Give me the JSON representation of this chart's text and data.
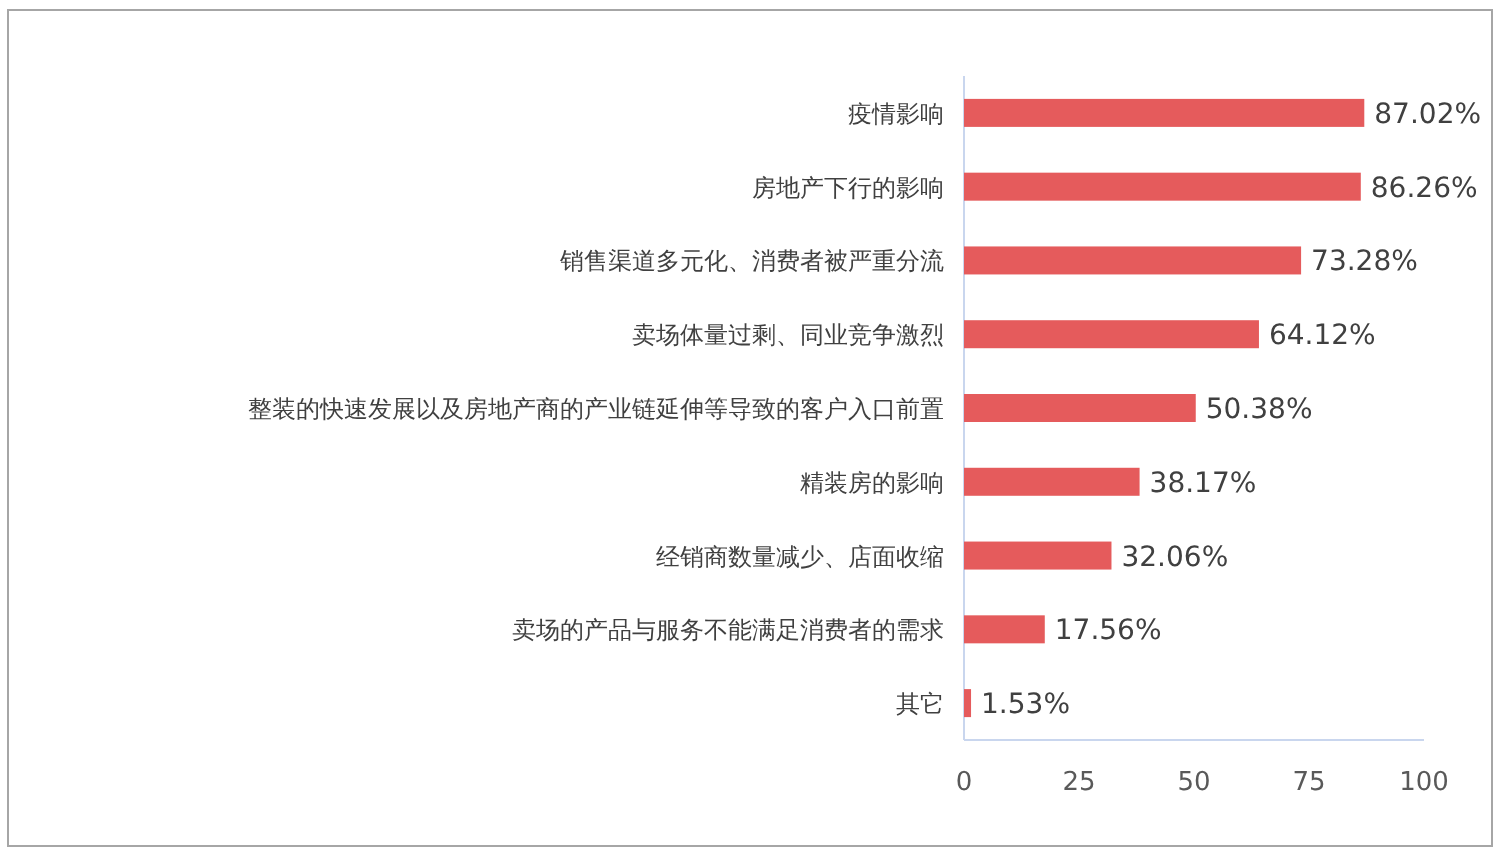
{
  "chart_data": {
    "type": "bar",
    "orientation": "horizontal",
    "categories": [
      "疫情影响",
      "房地产下行的影响",
      "销售渠道多元化、消费者被严重分流",
      "卖场体量过剩、同业竞争激烈",
      "整装的快速发展以及房地产商的产业链延伸等导致的客户入口前置",
      "精装房的影响",
      "经销商数量减少、店面收缩",
      "卖场的产品与服务不能满足消费者的需求",
      "其它"
    ],
    "values": [
      87.02,
      86.26,
      73.28,
      64.12,
      50.38,
      38.17,
      32.06,
      17.56,
      1.53
    ],
    "value_labels": [
      "87.02%",
      "86.26%",
      "73.28%",
      "64.12%",
      "50.38%",
      "38.17%",
      "32.06%",
      "17.56%",
      "1.53%"
    ],
    "color": "#e55b5c",
    "xlim": [
      0,
      100
    ],
    "xticks": [
      0,
      25,
      50,
      75,
      100
    ],
    "grid": false
  }
}
